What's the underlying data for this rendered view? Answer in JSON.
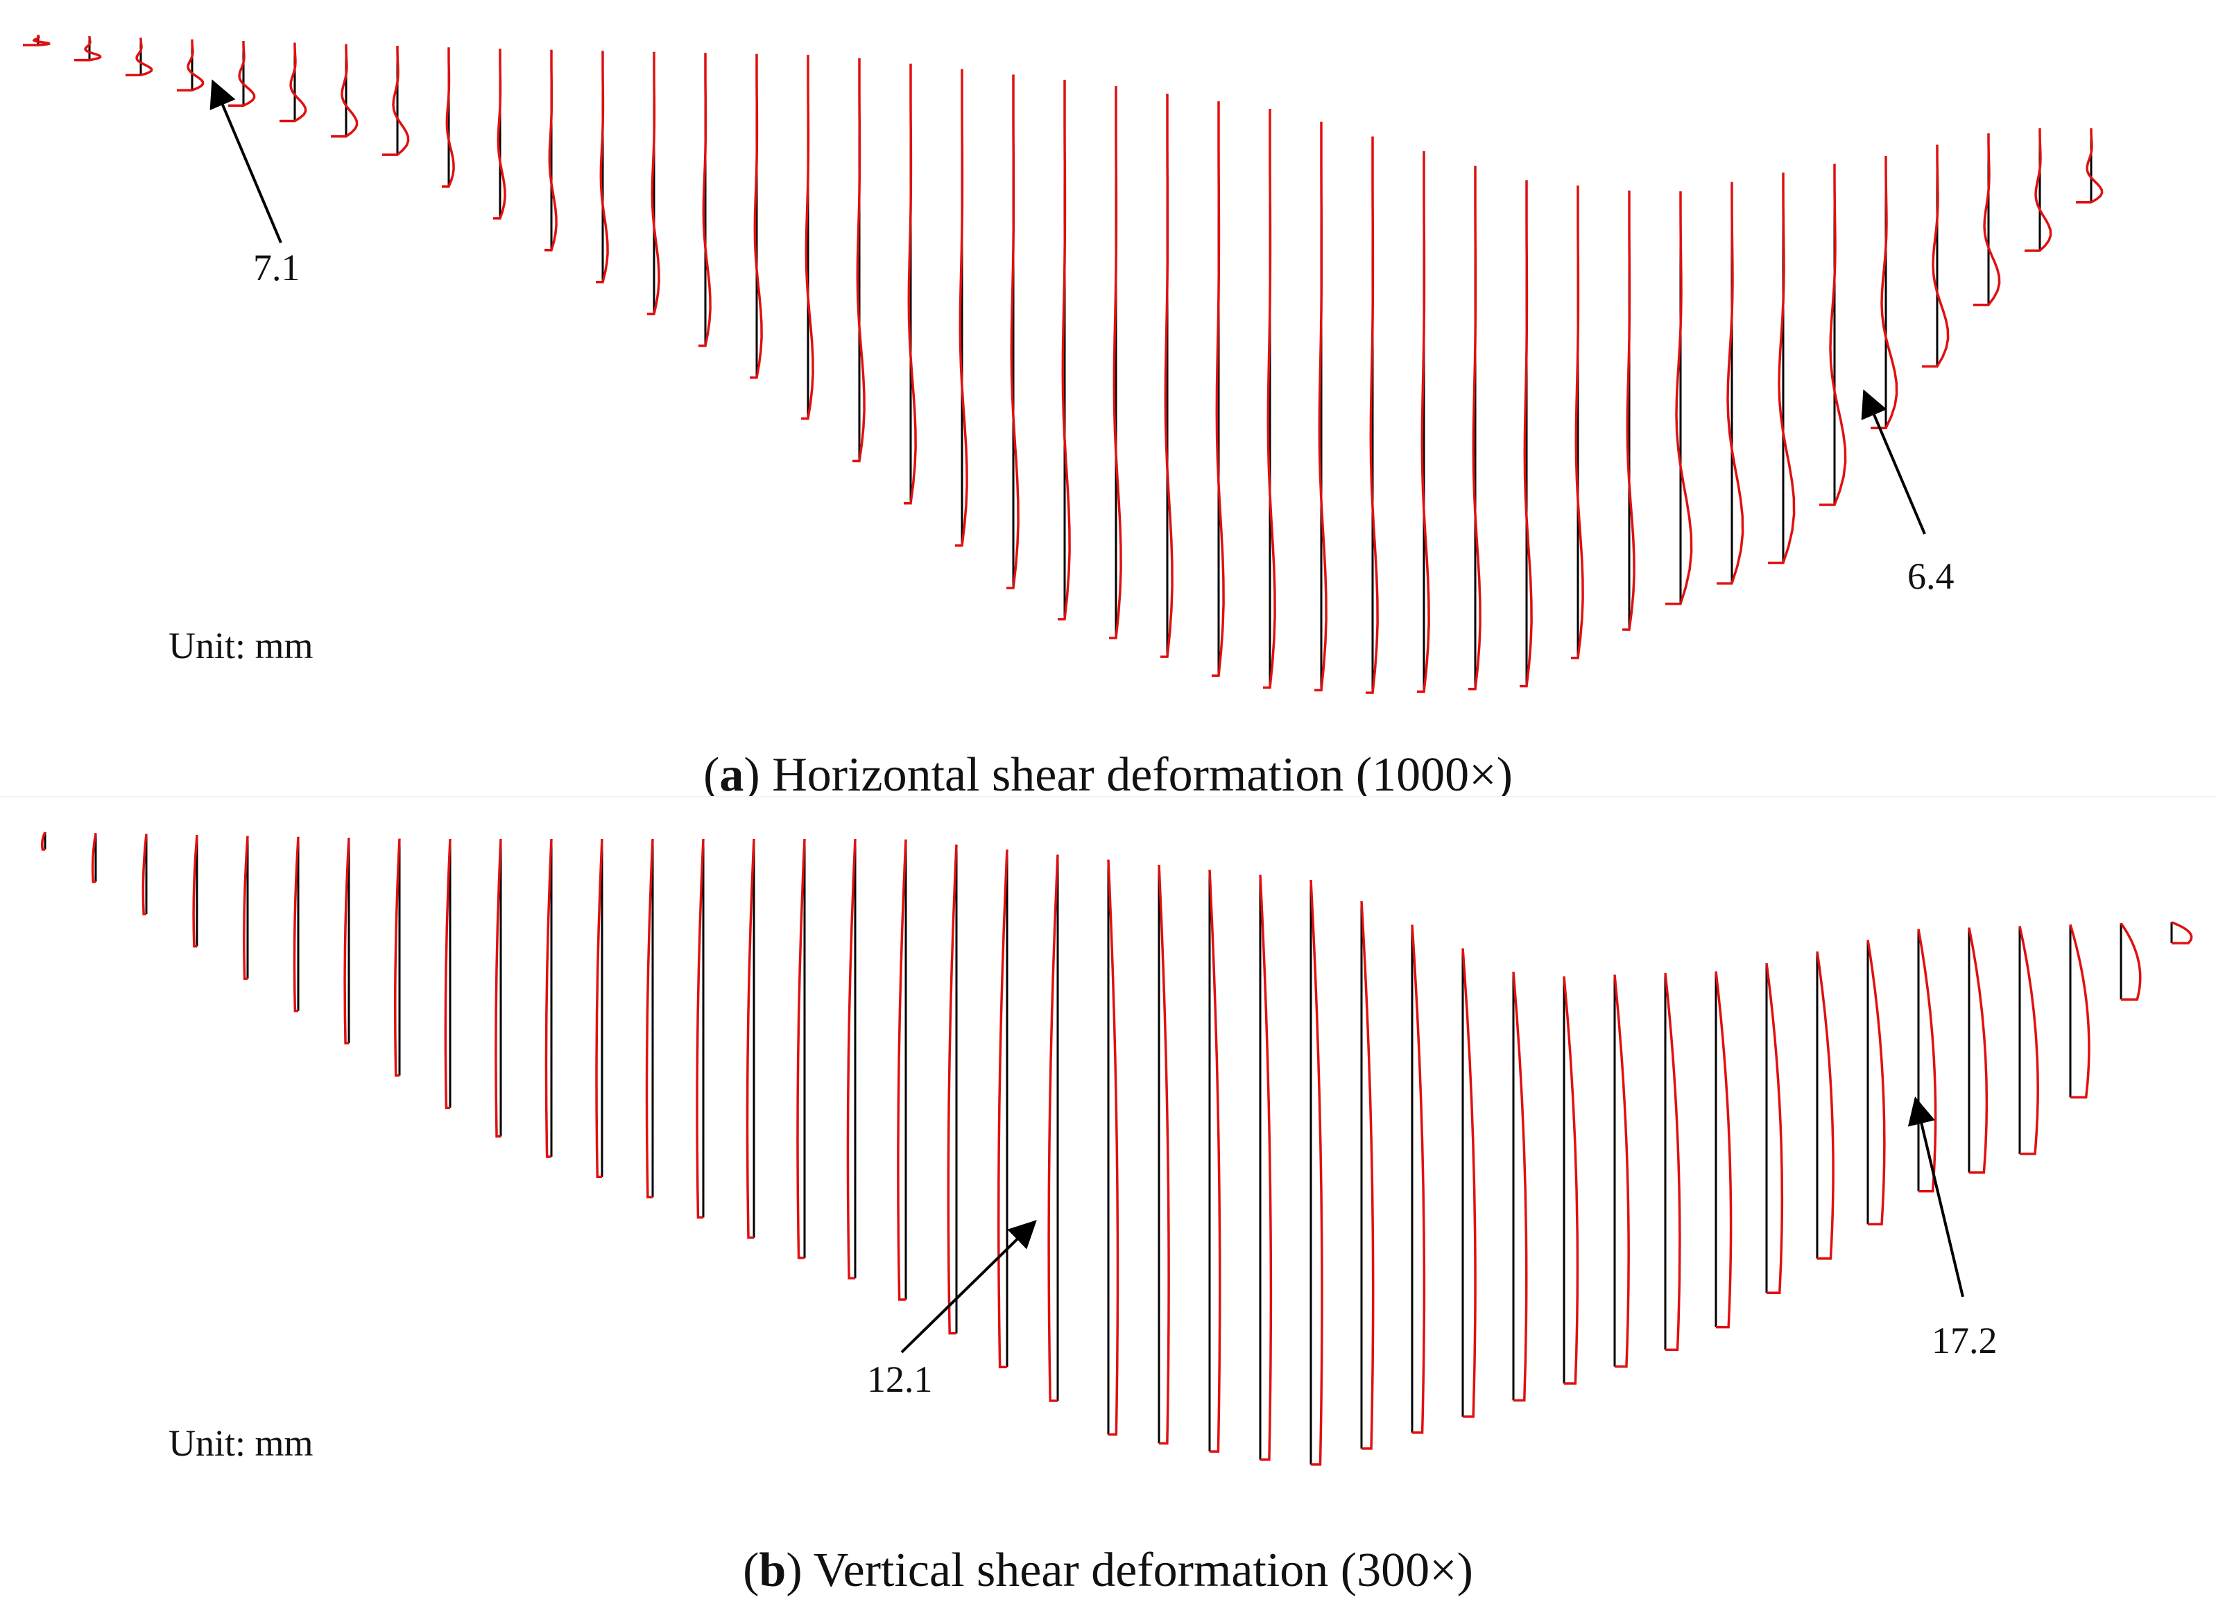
{
  "panels": [
    {
      "letter": "a",
      "caption": "Horizontal shear deformation (1000×)",
      "unit_label": "Unit: mm",
      "annotations": [
        "7.1",
        "6.4"
      ],
      "line_color": "#000000",
      "deformation_color": "#e01010"
    },
    {
      "letter": "b",
      "caption": "Vertical shear deformation (300×)",
      "unit_label": "Unit: mm",
      "annotations": [
        "12.1",
        "17.2"
      ],
      "line_color": "#000000",
      "deformation_color": "#e01010"
    }
  ]
}
